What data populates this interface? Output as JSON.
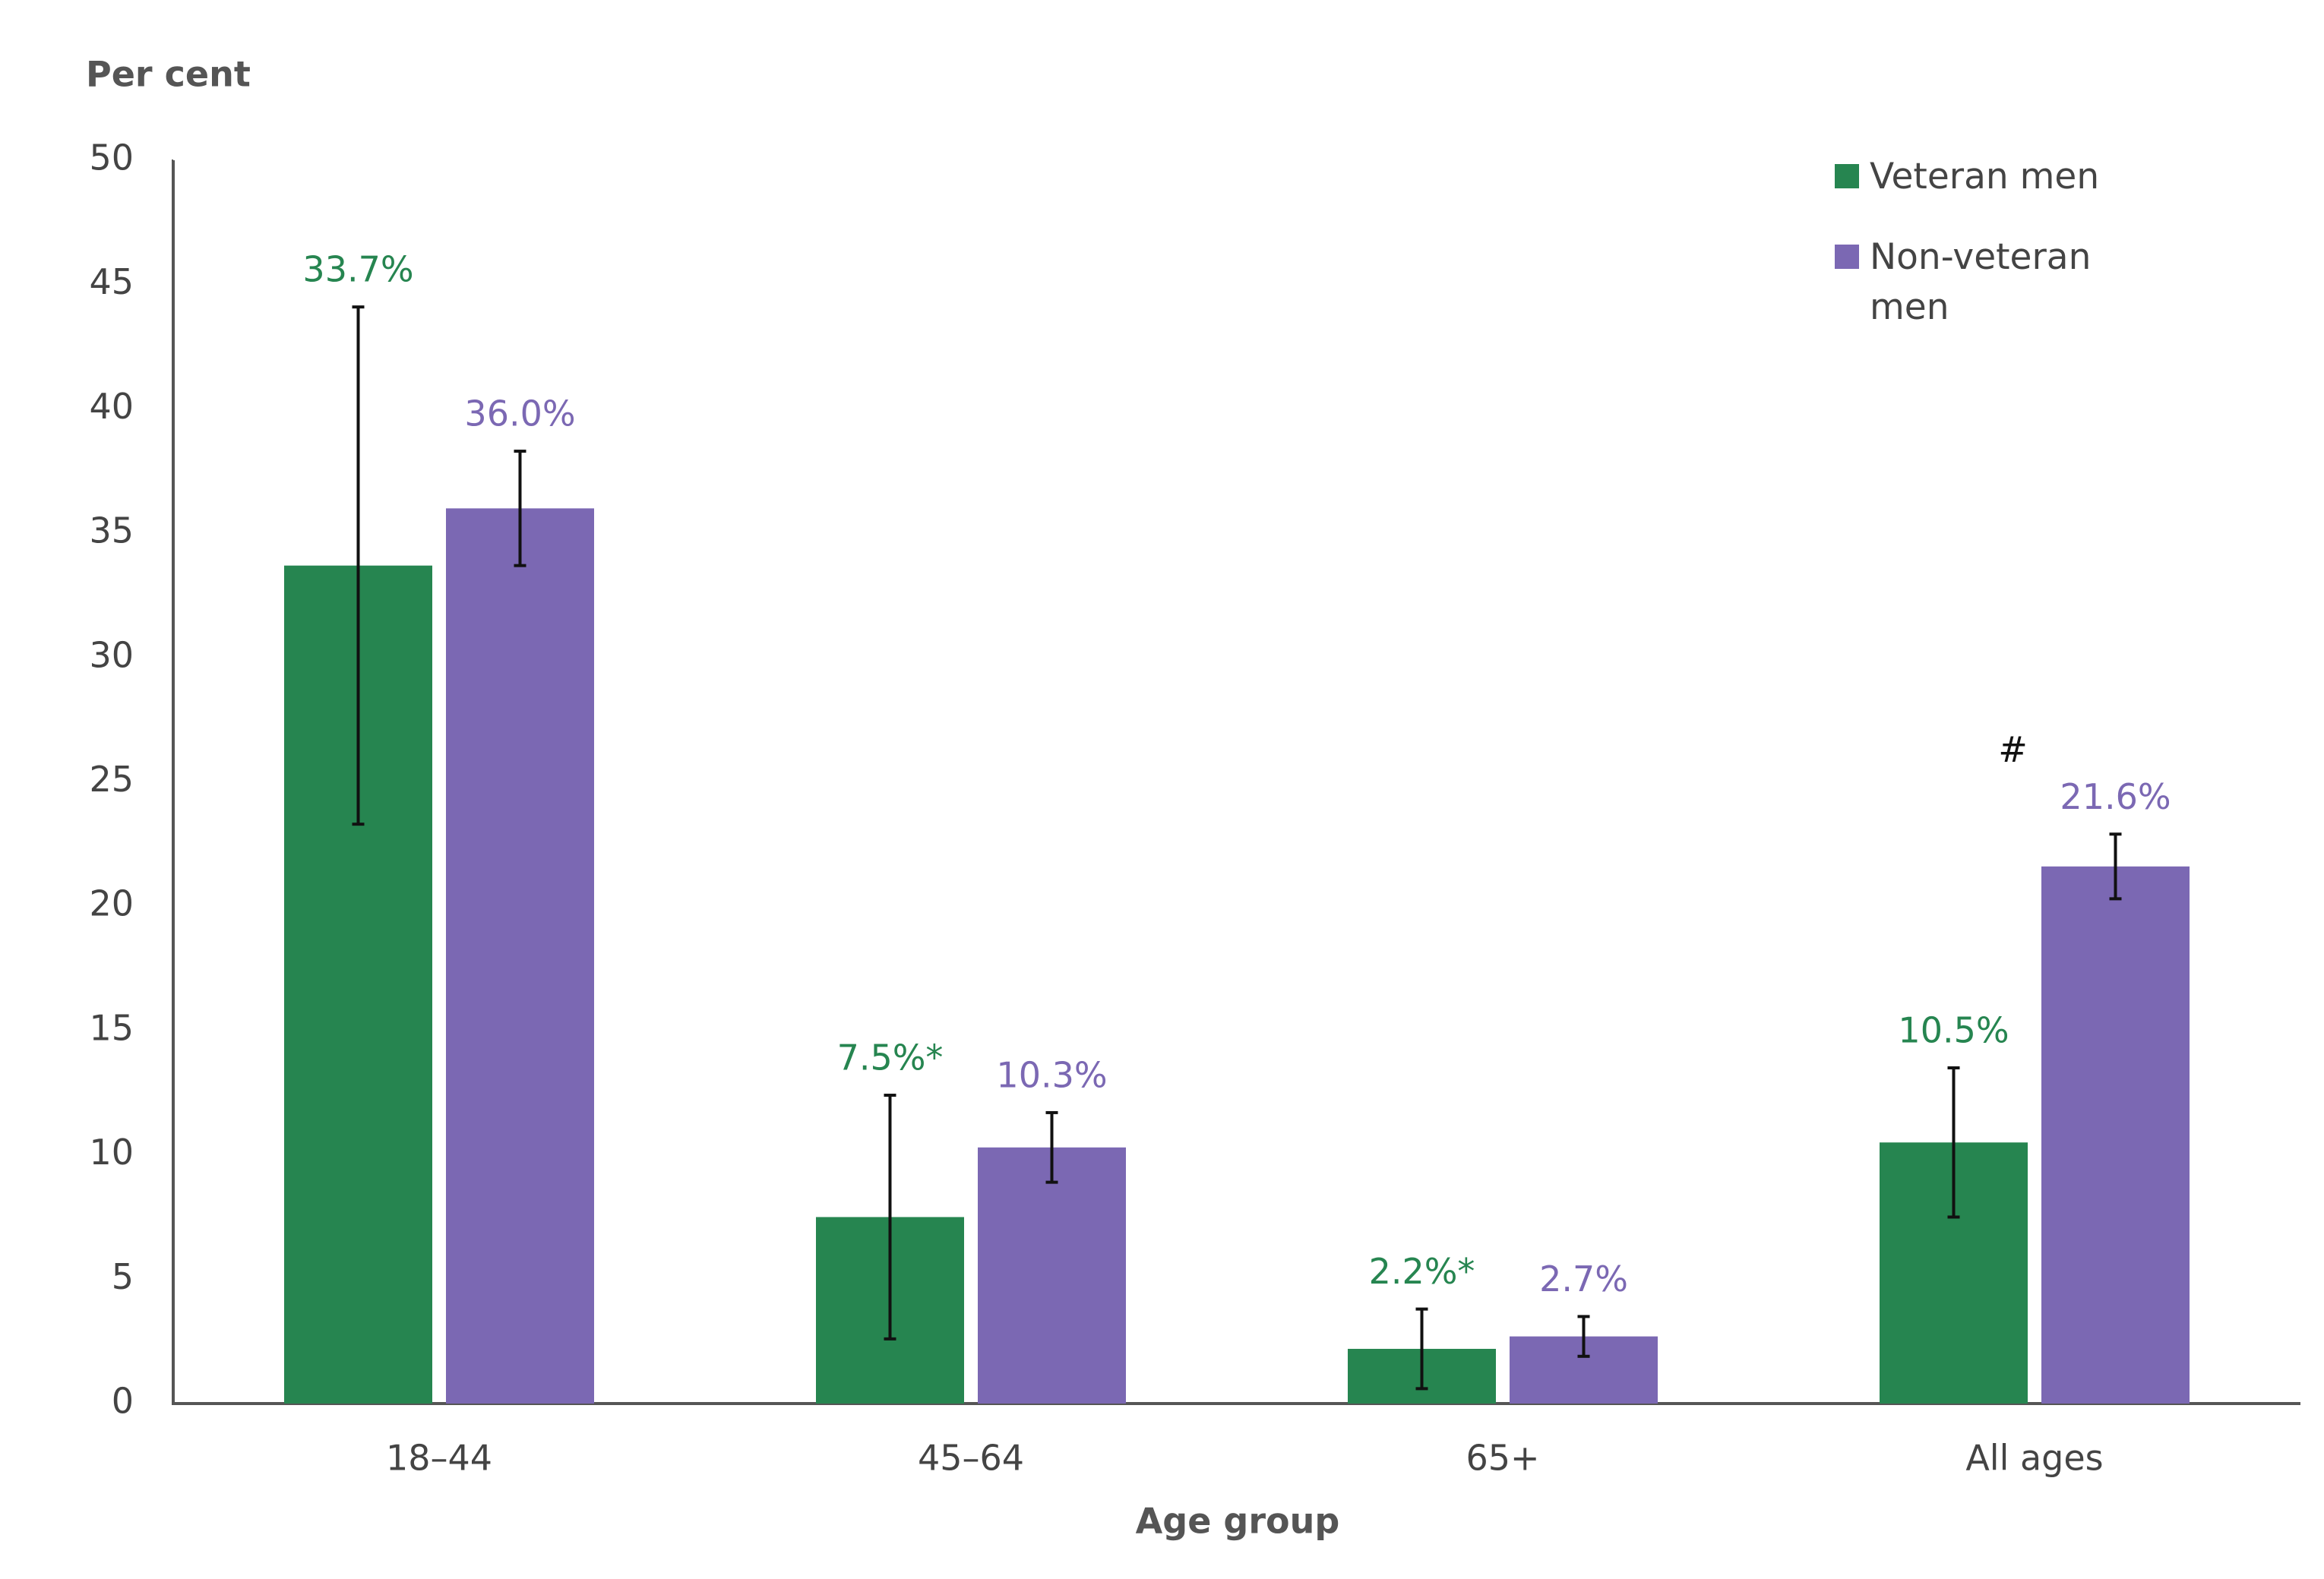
{
  "chart_data": {
    "type": "bar",
    "y_label": "Per cent",
    "x_label": "Age group",
    "categories": [
      "18–44",
      "45–64",
      "65+",
      "All ages"
    ],
    "series": [
      {
        "name": "Veteran men",
        "color": "#268550",
        "values": [
          33.7,
          7.5,
          2.2,
          10.5
        ],
        "value_labels": [
          "33.7%",
          "7.5%*",
          "2.2%*",
          "10.5%"
        ],
        "errors": [
          10.4,
          4.9,
          1.6,
          3.0
        ]
      },
      {
        "name": "Non-veteran men",
        "color": "#7b68b3",
        "values": [
          36.0,
          10.3,
          2.7,
          21.6
        ],
        "value_labels": [
          "36.0%",
          "10.3%",
          "2.7%",
          "21.6%"
        ],
        "errors": [
          2.3,
          1.4,
          0.8,
          1.3
        ]
      }
    ],
    "annotations": [
      {
        "text": "#",
        "series": 1,
        "category": 3
      }
    ],
    "ylim": [
      0,
      50
    ],
    "yticks": [
      0,
      5,
      10,
      15,
      20,
      25,
      30,
      35,
      40,
      45,
      50
    ],
    "legend": "top-right"
  }
}
